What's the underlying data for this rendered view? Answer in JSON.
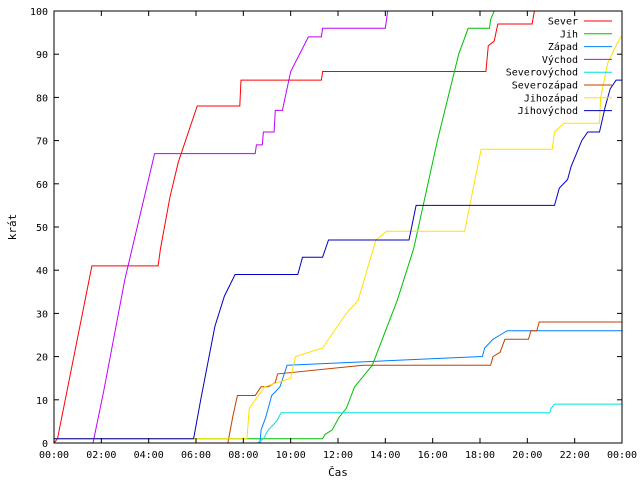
{
  "chart_data": {
    "type": "line",
    "title": "",
    "xlabel": "Čas",
    "ylabel": "krát",
    "xlim": [
      0,
      24
    ],
    "ylim": [
      0,
      100
    ],
    "x_ticks": [
      {
        "v": 0,
        "label": "00:00"
      },
      {
        "v": 2,
        "label": "02:00"
      },
      {
        "v": 4,
        "label": "04:00"
      },
      {
        "v": 6,
        "label": "06:00"
      },
      {
        "v": 8,
        "label": "08:00"
      },
      {
        "v": 10,
        "label": "10:00"
      },
      {
        "v": 12,
        "label": "12:00"
      },
      {
        "v": 14,
        "label": "14:00"
      },
      {
        "v": 16,
        "label": "16:00"
      },
      {
        "v": 18,
        "label": "18:00"
      },
      {
        "v": 20,
        "label": "20:00"
      },
      {
        "v": 22,
        "label": "22:00"
      },
      {
        "v": 24,
        "label": "00:00"
      }
    ],
    "y_ticks": [
      {
        "v": 0,
        "label": "0"
      },
      {
        "v": 10,
        "label": "10"
      },
      {
        "v": 20,
        "label": "20"
      },
      {
        "v": 30,
        "label": "30"
      },
      {
        "v": 40,
        "label": "40"
      },
      {
        "v": 50,
        "label": "50"
      },
      {
        "v": 60,
        "label": "60"
      },
      {
        "v": 70,
        "label": "70"
      },
      {
        "v": 80,
        "label": "80"
      },
      {
        "v": 90,
        "label": "90"
      },
      {
        "v": 100,
        "label": "100"
      }
    ],
    "grid": false,
    "legend_position": "top-right",
    "series": [
      {
        "name": "Sever",
        "color": "#ff0000",
        "points": [
          [
            0,
            0
          ],
          [
            0.15,
            1
          ],
          [
            1.6,
            41
          ],
          [
            4.4,
            41
          ],
          [
            4.5,
            45
          ],
          [
            4.9,
            57
          ],
          [
            5.25,
            65
          ],
          [
            6.05,
            78
          ],
          [
            7.85,
            78
          ],
          [
            7.9,
            84
          ],
          [
            11.3,
            84
          ],
          [
            11.35,
            86
          ],
          [
            18.25,
            86
          ],
          [
            18.35,
            92
          ],
          [
            18.6,
            93
          ],
          [
            18.75,
            97
          ],
          [
            20.2,
            97
          ],
          [
            20.3,
            100
          ],
          [
            24,
            100
          ]
        ]
      },
      {
        "name": "Jih",
        "color": "#00c000",
        "points": [
          [
            0,
            1
          ],
          [
            11.35,
            1
          ],
          [
            11.45,
            2
          ],
          [
            11.75,
            3
          ],
          [
            12.05,
            6
          ],
          [
            12.35,
            8
          ],
          [
            12.7,
            13
          ],
          [
            13.0,
            15
          ],
          [
            13.45,
            18
          ],
          [
            14.5,
            33
          ],
          [
            15.2,
            45
          ],
          [
            16.2,
            70
          ],
          [
            17.1,
            90
          ],
          [
            17.5,
            96
          ],
          [
            18.4,
            96
          ],
          [
            18.45,
            98
          ],
          [
            18.6,
            100
          ],
          [
            24,
            100
          ]
        ]
      },
      {
        "name": "Západ",
        "color": "#0080ff",
        "points": [
          [
            0,
            0
          ],
          [
            8.7,
            0
          ],
          [
            8.75,
            3
          ],
          [
            8.95,
            6
          ],
          [
            9.2,
            11
          ],
          [
            9.55,
            13
          ],
          [
            9.85,
            18
          ],
          [
            17.95,
            20
          ],
          [
            18.1,
            20
          ],
          [
            18.2,
            22
          ],
          [
            18.55,
            24
          ],
          [
            18.85,
            25
          ],
          [
            19.15,
            26
          ],
          [
            24,
            26
          ]
        ]
      },
      {
        "name": "Východ",
        "color": "#c000ff",
        "points": [
          [
            0,
            0
          ],
          [
            1.65,
            0
          ],
          [
            2.1,
            12
          ],
          [
            3.0,
            38
          ],
          [
            4.25,
            67
          ],
          [
            8.5,
            67
          ],
          [
            8.55,
            69
          ],
          [
            8.8,
            69
          ],
          [
            8.85,
            72
          ],
          [
            9.3,
            72
          ],
          [
            9.35,
            77
          ],
          [
            9.65,
            77
          ],
          [
            10.0,
            86
          ],
          [
            10.75,
            94
          ],
          [
            11.3,
            94
          ],
          [
            11.35,
            96
          ],
          [
            14.0,
            96
          ],
          [
            14.1,
            100
          ],
          [
            24,
            100
          ]
        ]
      },
      {
        "name": "Severovýchod",
        "color": "#00e0e0",
        "points": [
          [
            0,
            0
          ],
          [
            8.6,
            0
          ],
          [
            8.85,
            1
          ],
          [
            9.05,
            3
          ],
          [
            9.4,
            5
          ],
          [
            9.6,
            7
          ],
          [
            20.95,
            7
          ],
          [
            21.0,
            8
          ],
          [
            21.15,
            9
          ],
          [
            24,
            9
          ]
        ]
      },
      {
        "name": "Severozápad",
        "color": "#c04000",
        "points": [
          [
            0,
            0
          ],
          [
            7.35,
            0
          ],
          [
            7.55,
            6
          ],
          [
            7.75,
            11
          ],
          [
            8.5,
            11
          ],
          [
            8.75,
            13
          ],
          [
            9.05,
            13
          ],
          [
            9.35,
            14
          ],
          [
            9.45,
            16
          ],
          [
            13.05,
            18
          ],
          [
            18.45,
            18
          ],
          [
            18.55,
            20
          ],
          [
            18.85,
            21
          ],
          [
            19.05,
            24
          ],
          [
            20.05,
            24
          ],
          [
            20.15,
            26
          ],
          [
            20.4,
            26
          ],
          [
            20.5,
            28
          ],
          [
            24,
            28
          ]
        ]
      },
      {
        "name": "Jihozápad",
        "color": "#ffe000",
        "points": [
          [
            0,
            1
          ],
          [
            8.15,
            1
          ],
          [
            8.25,
            8
          ],
          [
            8.9,
            13
          ],
          [
            10.0,
            15
          ],
          [
            10.2,
            20
          ],
          [
            11.35,
            22
          ],
          [
            12.35,
            30
          ],
          [
            12.85,
            33
          ],
          [
            13.6,
            47
          ],
          [
            14.05,
            49
          ],
          [
            17.35,
            49
          ],
          [
            17.75,
            60
          ],
          [
            18.05,
            68
          ],
          [
            21.05,
            68
          ],
          [
            21.15,
            72
          ],
          [
            21.55,
            74
          ],
          [
            23.05,
            74
          ],
          [
            23.1,
            80
          ],
          [
            23.4,
            88
          ],
          [
            23.75,
            92
          ],
          [
            23.95,
            94
          ],
          [
            24,
            94
          ]
        ]
      },
      {
        "name": "Jihovýchod",
        "color": "#0000c0",
        "points": [
          [
            0,
            1
          ],
          [
            5.9,
            1
          ],
          [
            6.2,
            10
          ],
          [
            6.8,
            27
          ],
          [
            7.2,
            34
          ],
          [
            7.65,
            39
          ],
          [
            10.3,
            39
          ],
          [
            10.5,
            43
          ],
          [
            11.35,
            43
          ],
          [
            11.6,
            47
          ],
          [
            15.0,
            47
          ],
          [
            15.3,
            55
          ],
          [
            21.15,
            55
          ],
          [
            21.35,
            59
          ],
          [
            21.7,
            61
          ],
          [
            21.85,
            64
          ],
          [
            22.3,
            70
          ],
          [
            22.55,
            72
          ],
          [
            23.05,
            72
          ],
          [
            23.3,
            78
          ],
          [
            23.5,
            82
          ],
          [
            23.75,
            84
          ],
          [
            24,
            84
          ]
        ]
      }
    ]
  }
}
